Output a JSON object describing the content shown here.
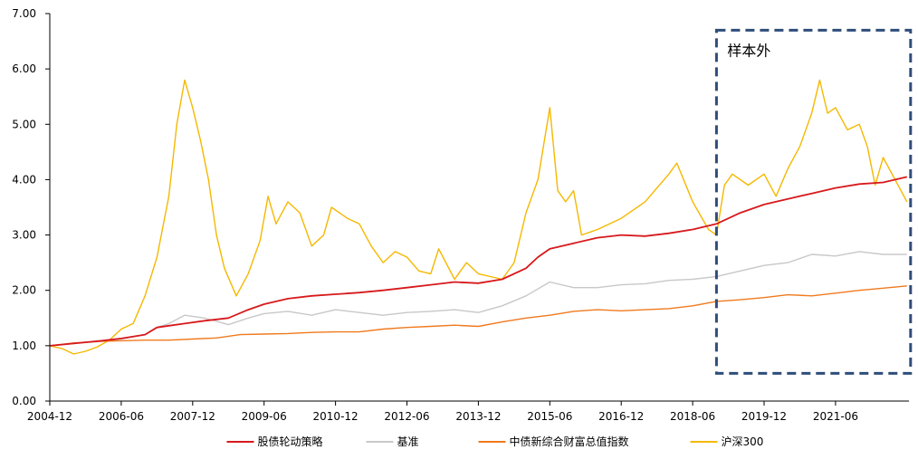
{
  "chart_data": {
    "type": "line",
    "title": "",
    "xlabel": "",
    "ylabel": "",
    "ylim": [
      0,
      7
    ],
    "grid": false,
    "legend_position": "bottom",
    "y_ticks": [
      {
        "value": 0,
        "label": "0.00"
      },
      {
        "value": 1,
        "label": "1.00"
      },
      {
        "value": 2,
        "label": "2.00"
      },
      {
        "value": 3,
        "label": "3.00"
      },
      {
        "value": 4,
        "label": "4.00"
      },
      {
        "value": 5,
        "label": "5.00"
      },
      {
        "value": 6,
        "label": "6.00"
      },
      {
        "value": 7,
        "label": "7.00"
      }
    ],
    "x_ticks": [
      "2004-12",
      "2006-06",
      "2007-12",
      "2009-06",
      "2010-12",
      "2012-06",
      "2013-12",
      "2015-06",
      "2016-12",
      "2018-06",
      "2019-12",
      "2021-06"
    ],
    "annotation": {
      "label": "样本外",
      "from": "2018-12",
      "to": "2022-12",
      "ymin": 0.5,
      "ymax": 6.7,
      "color": "#2f4d7a"
    },
    "series": [
      {
        "name": "股债轮动策略",
        "color": "#d7191c",
        "points": [
          [
            "2004-12",
            1.0
          ],
          [
            "2005-06",
            1.04
          ],
          [
            "2006-01",
            1.09
          ],
          [
            "2006-06",
            1.13
          ],
          [
            "2006-12",
            1.2
          ],
          [
            "2007-03",
            1.33
          ],
          [
            "2007-06",
            1.36
          ],
          [
            "2007-10",
            1.4
          ],
          [
            "2008-03",
            1.45
          ],
          [
            "2008-09",
            1.5
          ],
          [
            "2009-02",
            1.65
          ],
          [
            "2009-06",
            1.75
          ],
          [
            "2009-12",
            1.85
          ],
          [
            "2010-06",
            1.9
          ],
          [
            "2010-12",
            1.93
          ],
          [
            "2011-06",
            1.96
          ],
          [
            "2011-12",
            2.0
          ],
          [
            "2012-06",
            2.05
          ],
          [
            "2012-12",
            2.1
          ],
          [
            "2013-06",
            2.15
          ],
          [
            "2013-12",
            2.13
          ],
          [
            "2014-06",
            2.2
          ],
          [
            "2014-12",
            2.4
          ],
          [
            "2015-03",
            2.6
          ],
          [
            "2015-06",
            2.75
          ],
          [
            "2015-12",
            2.85
          ],
          [
            "2016-06",
            2.95
          ],
          [
            "2016-12",
            3.0
          ],
          [
            "2017-06",
            2.98
          ],
          [
            "2017-12",
            3.03
          ],
          [
            "2018-06",
            3.1
          ],
          [
            "2018-12",
            3.2
          ],
          [
            "2019-06",
            3.4
          ],
          [
            "2019-12",
            3.55
          ],
          [
            "2020-06",
            3.65
          ],
          [
            "2020-12",
            3.75
          ],
          [
            "2021-06",
            3.85
          ],
          [
            "2021-12",
            3.92
          ],
          [
            "2022-06",
            3.95
          ],
          [
            "2022-12",
            4.05
          ]
        ]
      },
      {
        "name": "基准",
        "color": "#c8c8c8",
        "points": [
          [
            "2004-12",
            1.0
          ],
          [
            "2005-06",
            1.04
          ],
          [
            "2006-01",
            1.08
          ],
          [
            "2006-06",
            1.12
          ],
          [
            "2006-12",
            1.2
          ],
          [
            "2007-03",
            1.33
          ],
          [
            "2007-06",
            1.4
          ],
          [
            "2007-10",
            1.55
          ],
          [
            "2008-03",
            1.5
          ],
          [
            "2008-09",
            1.38
          ],
          [
            "2009-02",
            1.5
          ],
          [
            "2009-06",
            1.58
          ],
          [
            "2009-12",
            1.62
          ],
          [
            "2010-06",
            1.55
          ],
          [
            "2010-12",
            1.65
          ],
          [
            "2011-06",
            1.6
          ],
          [
            "2011-12",
            1.55
          ],
          [
            "2012-06",
            1.6
          ],
          [
            "2012-12",
            1.62
          ],
          [
            "2013-06",
            1.65
          ],
          [
            "2013-12",
            1.6
          ],
          [
            "2014-06",
            1.72
          ],
          [
            "2014-12",
            1.9
          ],
          [
            "2015-06",
            2.15
          ],
          [
            "2015-12",
            2.05
          ],
          [
            "2016-06",
            2.05
          ],
          [
            "2016-12",
            2.1
          ],
          [
            "2017-06",
            2.12
          ],
          [
            "2017-12",
            2.18
          ],
          [
            "2018-06",
            2.2
          ],
          [
            "2018-12",
            2.25
          ],
          [
            "2019-06",
            2.35
          ],
          [
            "2019-12",
            2.45
          ],
          [
            "2020-06",
            2.5
          ],
          [
            "2020-12",
            2.65
          ],
          [
            "2021-06",
            2.62
          ],
          [
            "2021-12",
            2.7
          ],
          [
            "2022-06",
            2.65
          ],
          [
            "2022-12",
            2.65
          ]
        ]
      },
      {
        "name": "中债新综合财富总值指数",
        "color": "#f07a1e",
        "points": [
          [
            "2004-12",
            1.0
          ],
          [
            "2005-06",
            1.05
          ],
          [
            "2006-01",
            1.08
          ],
          [
            "2006-06",
            1.09
          ],
          [
            "2006-12",
            1.1
          ],
          [
            "2007-06",
            1.1
          ],
          [
            "2007-12",
            1.12
          ],
          [
            "2008-06",
            1.14
          ],
          [
            "2008-12",
            1.2
          ],
          [
            "2009-06",
            1.21
          ],
          [
            "2009-12",
            1.22
          ],
          [
            "2010-06",
            1.24
          ],
          [
            "2010-12",
            1.25
          ],
          [
            "2011-06",
            1.25
          ],
          [
            "2011-12",
            1.3
          ],
          [
            "2012-06",
            1.33
          ],
          [
            "2012-12",
            1.35
          ],
          [
            "2013-06",
            1.37
          ],
          [
            "2013-12",
            1.35
          ],
          [
            "2014-06",
            1.43
          ],
          [
            "2014-12",
            1.5
          ],
          [
            "2015-06",
            1.55
          ],
          [
            "2015-12",
            1.62
          ],
          [
            "2016-06",
            1.65
          ],
          [
            "2016-12",
            1.63
          ],
          [
            "2017-06",
            1.65
          ],
          [
            "2017-12",
            1.67
          ],
          [
            "2018-06",
            1.72
          ],
          [
            "2018-12",
            1.8
          ],
          [
            "2019-06",
            1.83
          ],
          [
            "2019-12",
            1.87
          ],
          [
            "2020-06",
            1.92
          ],
          [
            "2020-12",
            1.9
          ],
          [
            "2021-06",
            1.95
          ],
          [
            "2021-12",
            2.0
          ],
          [
            "2022-06",
            2.04
          ],
          [
            "2022-12",
            2.08
          ]
        ]
      },
      {
        "name": "沪深300",
        "color": "#f5b800",
        "points": [
          [
            "2004-12",
            1.0
          ],
          [
            "2005-03",
            0.95
          ],
          [
            "2005-06",
            0.85
          ],
          [
            "2005-09",
            0.9
          ],
          [
            "2005-12",
            0.98
          ],
          [
            "2006-03",
            1.1
          ],
          [
            "2006-06",
            1.3
          ],
          [
            "2006-09",
            1.4
          ],
          [
            "2006-12",
            1.9
          ],
          [
            "2007-03",
            2.6
          ],
          [
            "2007-06",
            3.7
          ],
          [
            "2007-08",
            5.0
          ],
          [
            "2007-10",
            5.8
          ],
          [
            "2007-12",
            5.3
          ],
          [
            "2008-02",
            4.7
          ],
          [
            "2008-04",
            4.0
          ],
          [
            "2008-06",
            3.0
          ],
          [
            "2008-08",
            2.4
          ],
          [
            "2008-11",
            1.9
          ],
          [
            "2009-02",
            2.3
          ],
          [
            "2009-05",
            2.9
          ],
          [
            "2009-07",
            3.7
          ],
          [
            "2009-09",
            3.2
          ],
          [
            "2009-12",
            3.6
          ],
          [
            "2010-03",
            3.4
          ],
          [
            "2010-06",
            2.8
          ],
          [
            "2010-09",
            3.0
          ],
          [
            "2010-11",
            3.5
          ],
          [
            "2011-03",
            3.3
          ],
          [
            "2011-06",
            3.2
          ],
          [
            "2011-09",
            2.8
          ],
          [
            "2011-12",
            2.5
          ],
          [
            "2012-03",
            2.7
          ],
          [
            "2012-06",
            2.6
          ],
          [
            "2012-09",
            2.35
          ],
          [
            "2012-12",
            2.3
          ],
          [
            "2013-02",
            2.75
          ],
          [
            "2013-06",
            2.2
          ],
          [
            "2013-09",
            2.5
          ],
          [
            "2013-12",
            2.3
          ],
          [
            "2014-06",
            2.2
          ],
          [
            "2014-09",
            2.5
          ],
          [
            "2014-12",
            3.4
          ],
          [
            "2015-03",
            4.0
          ],
          [
            "2015-06",
            5.3
          ],
          [
            "2015-08",
            3.8
          ],
          [
            "2015-10",
            3.6
          ],
          [
            "2015-12",
            3.8
          ],
          [
            "2016-02",
            3.0
          ],
          [
            "2016-06",
            3.1
          ],
          [
            "2016-12",
            3.3
          ],
          [
            "2017-06",
            3.6
          ],
          [
            "2017-12",
            4.1
          ],
          [
            "2018-02",
            4.3
          ],
          [
            "2018-06",
            3.6
          ],
          [
            "2018-10",
            3.1
          ],
          [
            "2018-12",
            3.0
          ],
          [
            "2019-02",
            3.9
          ],
          [
            "2019-04",
            4.1
          ],
          [
            "2019-08",
            3.9
          ],
          [
            "2019-12",
            4.1
          ],
          [
            "2020-03",
            3.7
          ],
          [
            "2020-06",
            4.2
          ],
          [
            "2020-09",
            4.6
          ],
          [
            "2020-12",
            5.2
          ],
          [
            "2021-02",
            5.8
          ],
          [
            "2021-04",
            5.2
          ],
          [
            "2021-06",
            5.3
          ],
          [
            "2021-09",
            4.9
          ],
          [
            "2021-12",
            5.0
          ],
          [
            "2022-02",
            4.6
          ],
          [
            "2022-04",
            3.9
          ],
          [
            "2022-06",
            4.4
          ],
          [
            "2022-09",
            4.0
          ],
          [
            "2022-12",
            3.6
          ]
        ]
      }
    ]
  }
}
